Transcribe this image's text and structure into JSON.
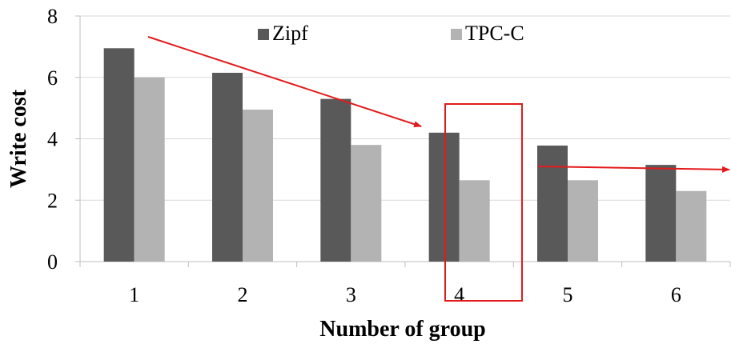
{
  "chart_data": {
    "type": "bar",
    "title": "",
    "xlabel": "Number of group",
    "ylabel": "Write cost",
    "categories": [
      "1",
      "2",
      "3",
      "4",
      "5",
      "6"
    ],
    "series": [
      {
        "name": "Zipf",
        "values": [
          6.95,
          6.15,
          5.3,
          4.2,
          3.78,
          3.15
        ],
        "color": "#595959"
      },
      {
        "name": "TPC-C",
        "values": [
          6.0,
          4.95,
          3.8,
          2.65,
          2.65,
          2.3
        ],
        "color": "#b3b3b3"
      }
    ],
    "ylim": [
      0,
      8
    ],
    "yticks": [
      "0",
      "2",
      "4",
      "6",
      "8"
    ],
    "grid": true,
    "legend_position": "top-center",
    "annotations": {
      "highlight_color": "#e31a1c",
      "highlight_box_category": "4",
      "arrows": [
        "trend-arrow-decreasing",
        "trend-arrow-flat"
      ]
    }
  }
}
